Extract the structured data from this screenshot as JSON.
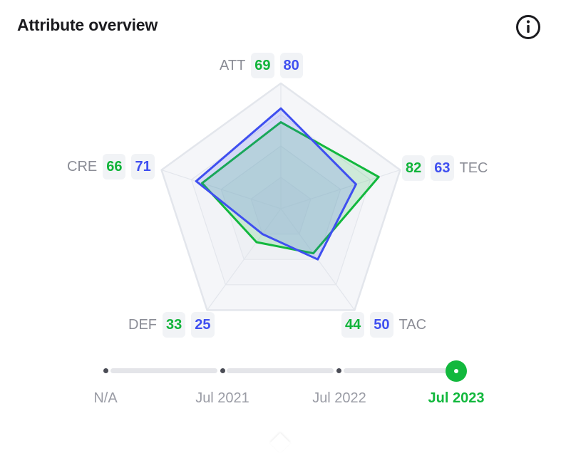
{
  "card": {
    "title": "Attribute overview"
  },
  "icons": {
    "info": "info-icon"
  },
  "chart_data": {
    "type": "radar",
    "axes": [
      "ATT",
      "TEC",
      "TAC",
      "DEF",
      "CRE"
    ],
    "max": 100,
    "series": [
      {
        "values": [
          69,
          82,
          44,
          33,
          66
        ],
        "color": "#12b83d"
      },
      {
        "values": [
          80,
          63,
          50,
          25,
          71
        ],
        "color": "#3f4ff0"
      }
    ]
  },
  "labels": {
    "att": {
      "name": "ATT",
      "a": "69",
      "b": "80"
    },
    "tec": {
      "name": "TEC",
      "a": "82",
      "b": "63"
    },
    "tac": {
      "name": "TAC",
      "a": "44",
      "b": "50"
    },
    "def": {
      "name": "DEF",
      "a": "33",
      "b": "25"
    },
    "cre": {
      "name": "CRE",
      "a": "66",
      "b": "71"
    }
  },
  "timeline": {
    "items": [
      "N/A",
      "Jul 2021",
      "Jul 2022",
      "Jul 2023"
    ],
    "selected": "Jul 2023"
  }
}
